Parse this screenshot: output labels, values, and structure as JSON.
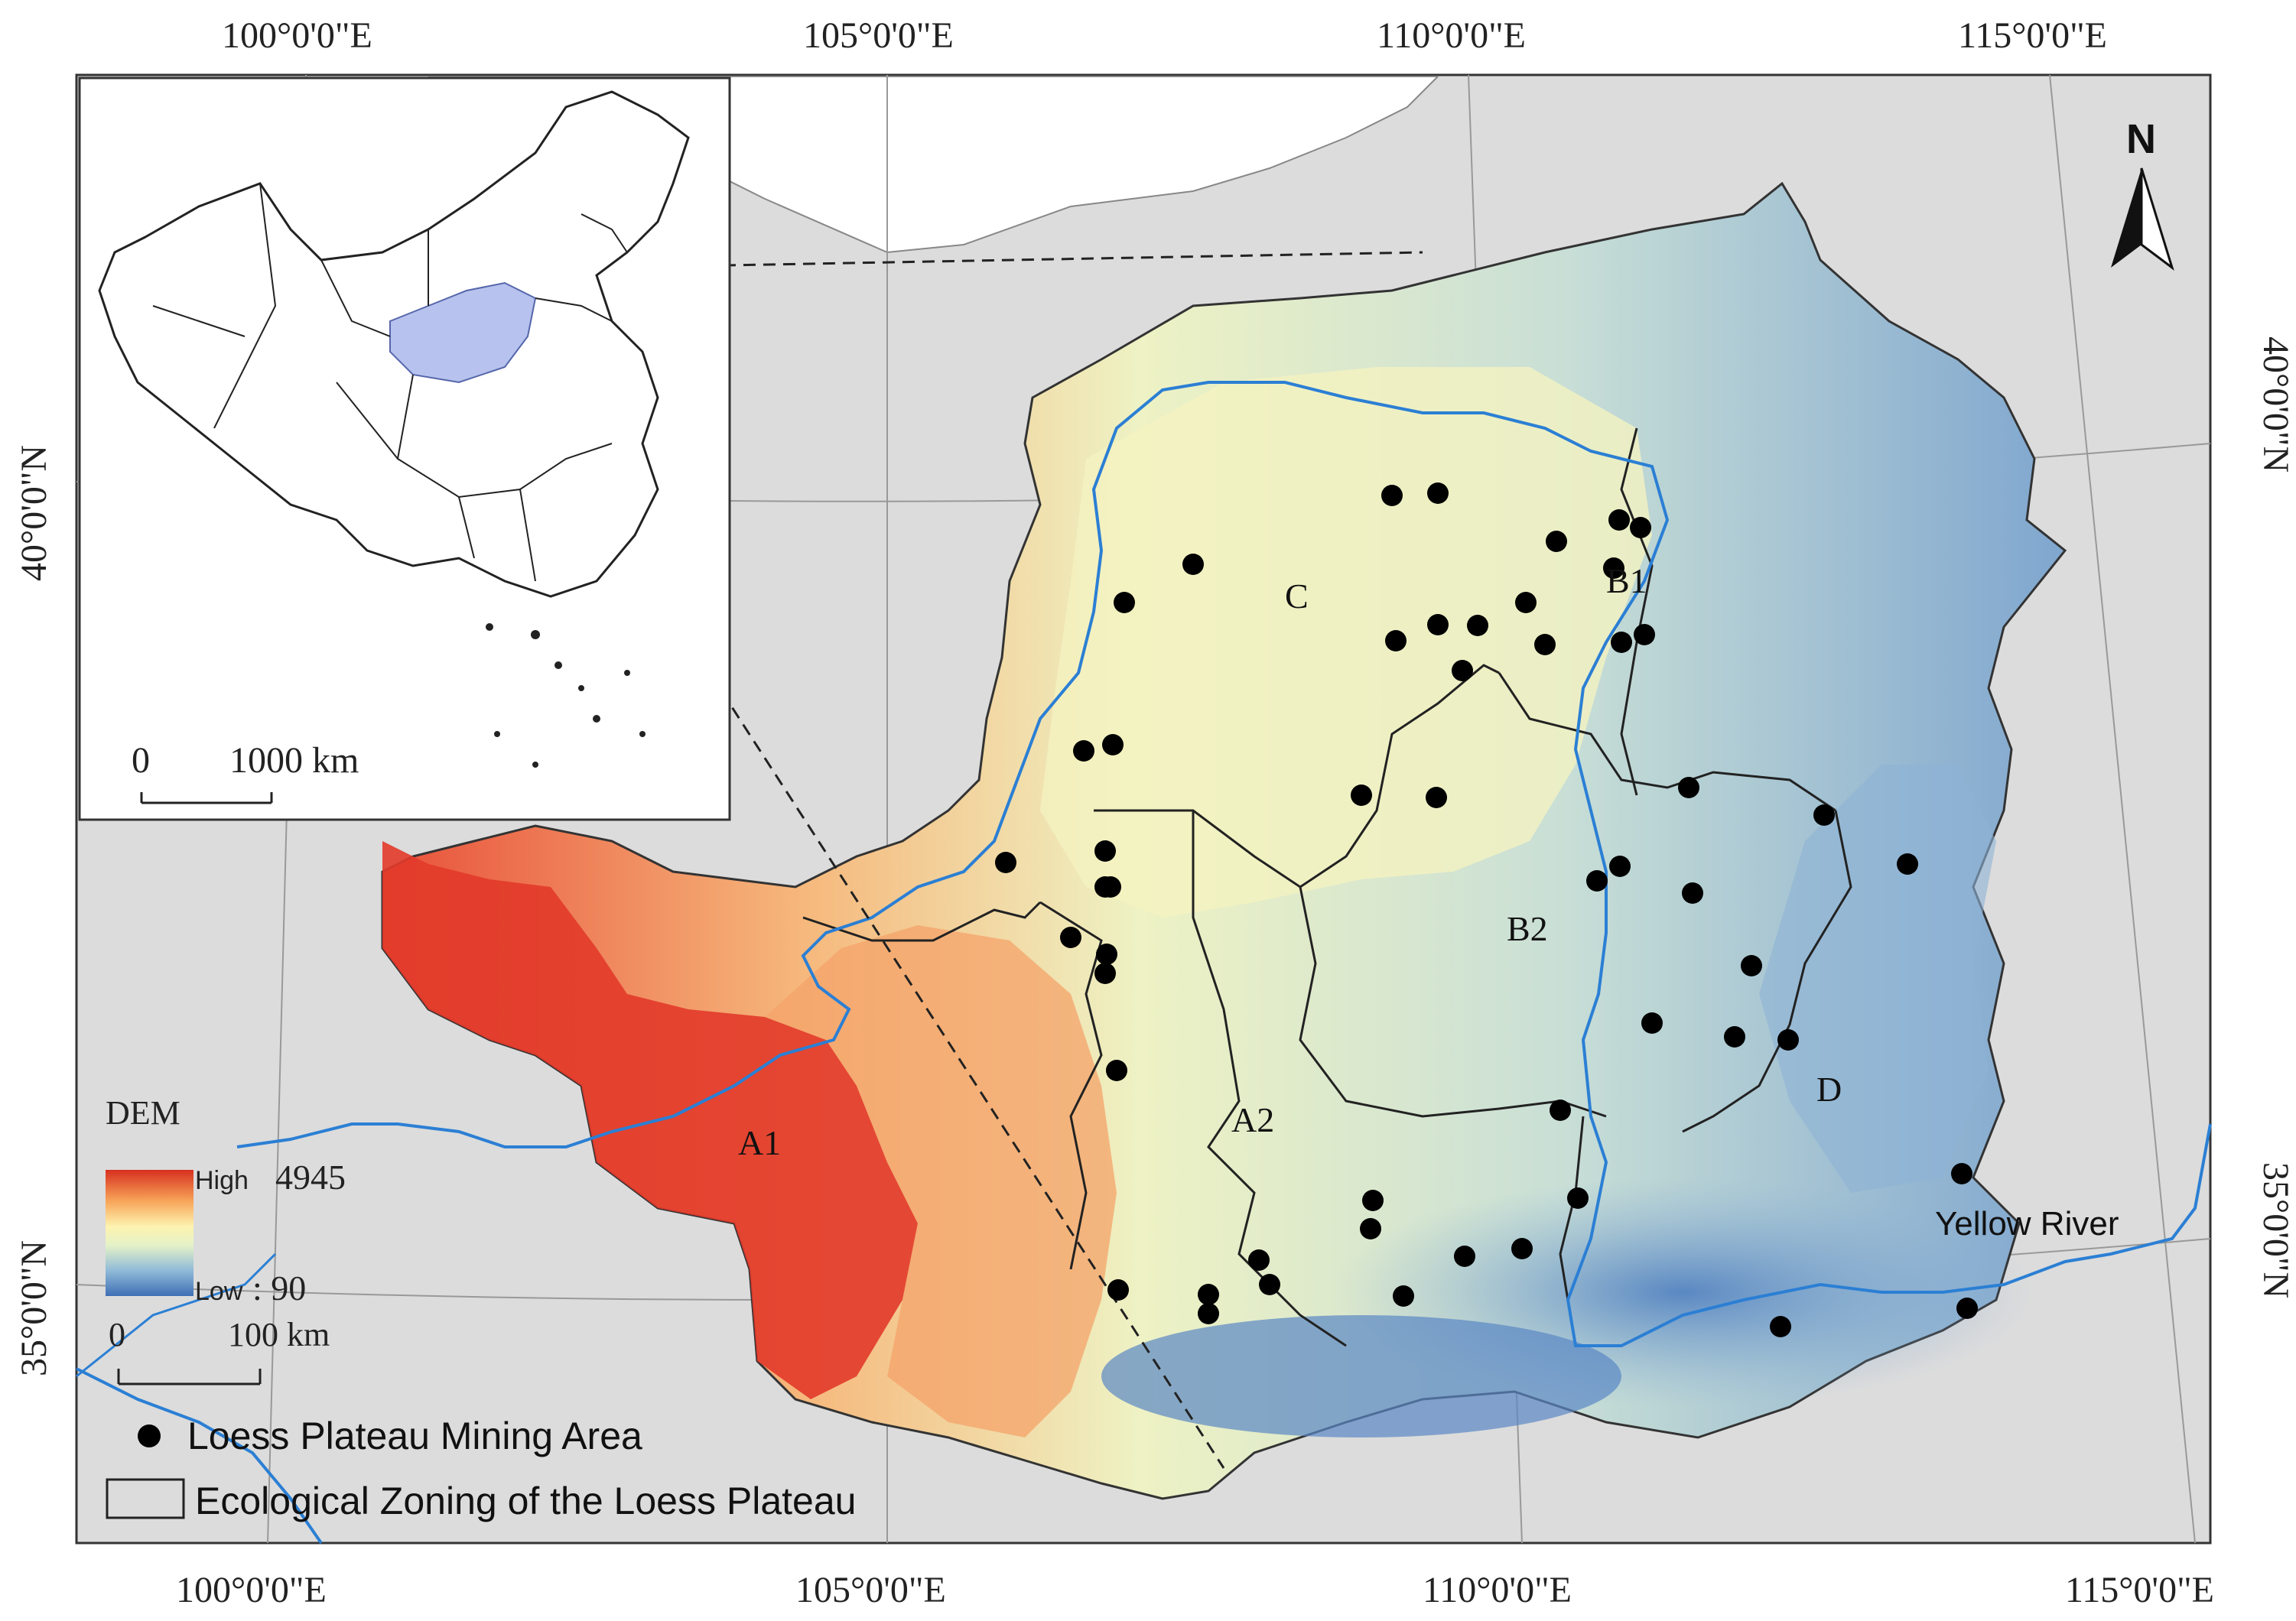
{
  "map": {
    "coordinate_labels": {
      "top": [
        "100°0'0\"E",
        "105°0'0\"E",
        "110°0'0\"E",
        "115°0'0\"E"
      ],
      "bottom": [
        "100°0'0\"E",
        "105°0'0\"E",
        "110°0'0\"E",
        "115°0'0\"E"
      ],
      "left": [
        "40°0'0\"N",
        "35°0'0\"N"
      ],
      "right": [
        "40°0'0\"N",
        "35°0'0\"N"
      ]
    },
    "zone_labels": [
      "C",
      "B1",
      "B2",
      "A1",
      "A2",
      "D"
    ],
    "river_label": "Yellow River",
    "north_arrow": "N",
    "inset": {
      "scale_zero": "0",
      "scale_length": "1000 km"
    },
    "main_scale": {
      "zero": "0",
      "length": "100 km"
    },
    "dem_legend": {
      "title": "DEM",
      "high_label": "High",
      "high_value": "4945",
      "low_label": "Low",
      "low_value": ": 90",
      "colors": [
        "#d7301f",
        "#fc8d59",
        "#fee090",
        "#e0f3c0",
        "#91bfdb",
        "#4575b4"
      ]
    },
    "legend": {
      "mining_area": "Loess Plateau Mining Area",
      "ecological_zoning": "Ecological Zoning of the Loess Plateau"
    },
    "colors": {
      "background": "#dcdcdc",
      "river": "#2b7fd4",
      "point": "#000000",
      "inset_highlight": "#b7c3ee"
    }
  }
}
